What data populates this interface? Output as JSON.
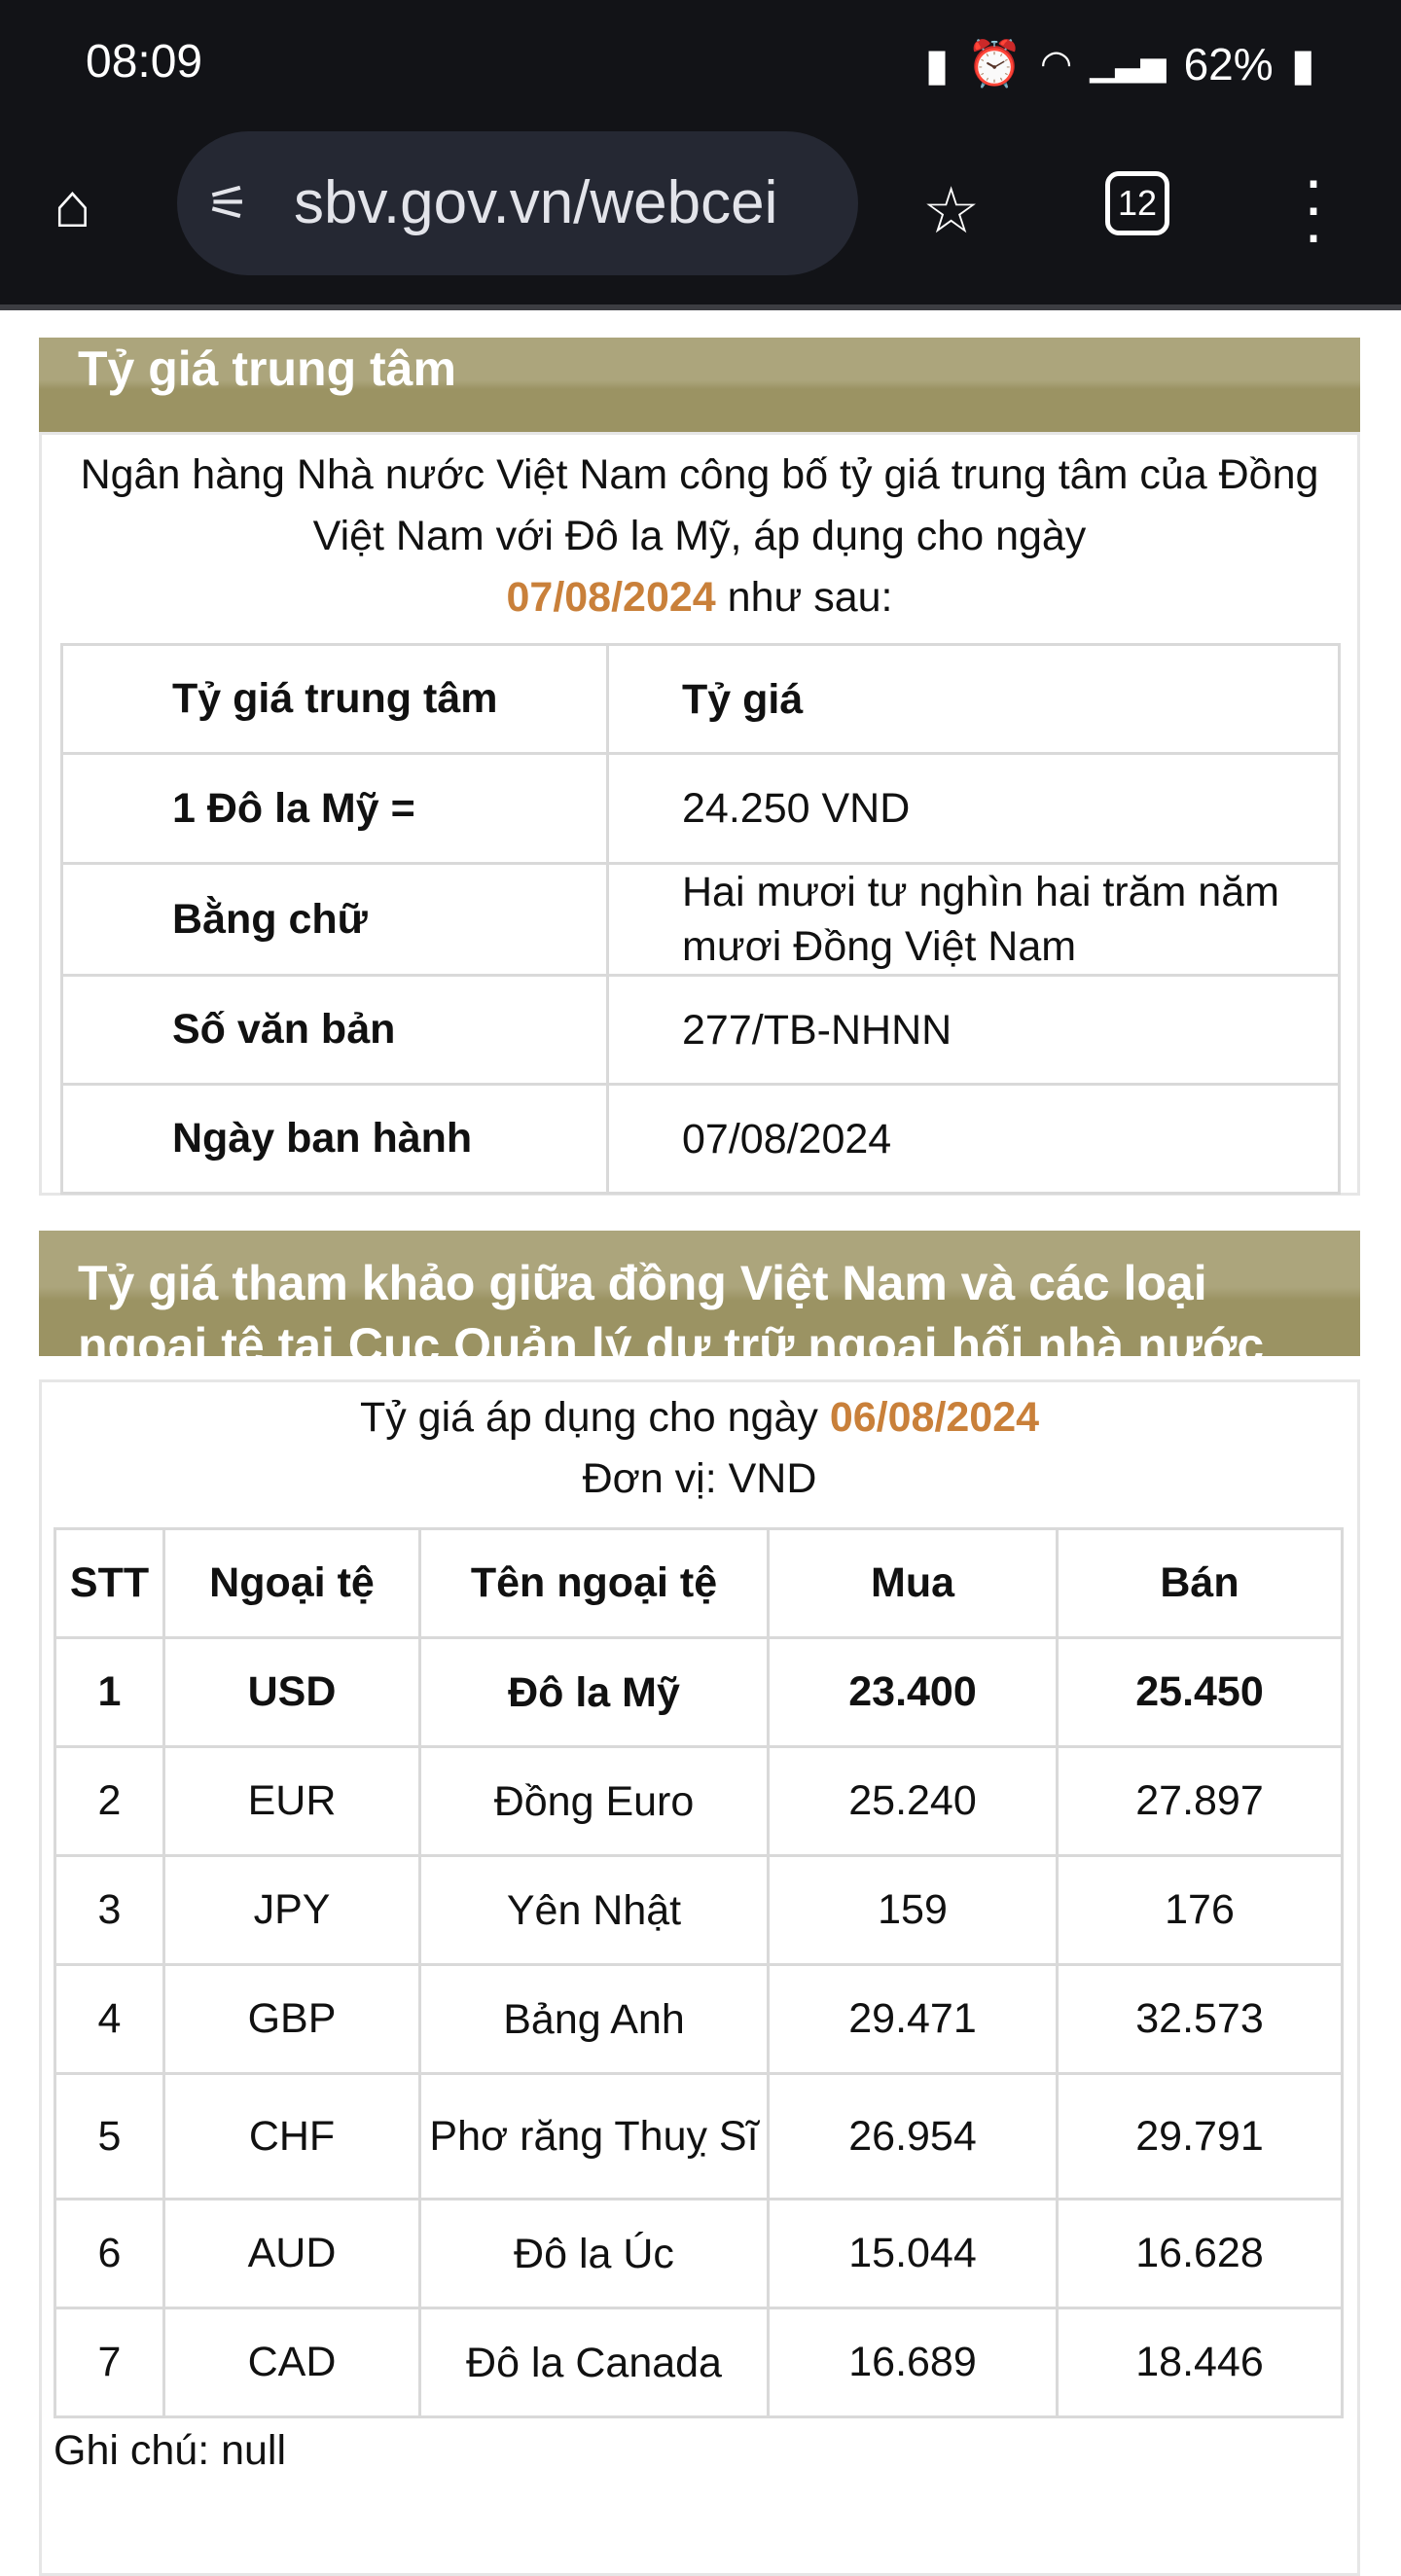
{
  "status_bar": {
    "time": "08:09",
    "battery": "62%",
    "icons": [
      "battery-saver-icon",
      "alarm-icon",
      "wifi-icon",
      "signal-icon",
      "battery-icon"
    ]
  },
  "browser": {
    "url": "sbv.gov.vn/webcei",
    "tab_count": "12",
    "icons": [
      "home-icon",
      "site-settings-icon",
      "star-icon",
      "tabs-icon",
      "more-icon"
    ]
  },
  "central_rate": {
    "title": "Tỷ giá trung tâm",
    "intro": "Ngân hàng Nhà nước Việt Nam công bố tỷ giá trung tâm của Đồng Việt Nam với Đô la Mỹ, áp dụng cho ngày",
    "date": "07/08/2024",
    "intro_suffix": "như sau:",
    "rows": [
      [
        "Tỷ giá trung tâm",
        "Tỷ giá"
      ],
      [
        "1 Đô la Mỹ =",
        "24.250 VND"
      ],
      [
        "Bằng chữ",
        "Hai mươi tư nghìn hai trăm năm mươi  Đồng Việt Nam"
      ],
      [
        "Số văn bản",
        "277/TB-NHNN"
      ],
      [
        "Ngày ban hành",
        "07/08/2024"
      ]
    ]
  },
  "reference_rate": {
    "title": "Tỷ giá tham khảo giữa đồng Việt Nam và các loại ngoại tệ tại Cục Quản lý dự trữ ngoại hối nhà nước",
    "date_label": "Tỷ giá áp dụng cho ngày",
    "date": "06/08/2024",
    "unit": "Đơn vị: VND",
    "headers": [
      "STT",
      "Ngoại tệ",
      "Tên ngoại tệ",
      "Mua",
      "Bán"
    ],
    "rows": [
      [
        "1",
        "USD",
        "Đô la Mỹ",
        "23.400",
        "25.450"
      ],
      [
        "2",
        "EUR",
        "Đồng Euro",
        "25.240",
        "27.897"
      ],
      [
        "3",
        "JPY",
        "Yên Nhật",
        "159",
        "176"
      ],
      [
        "4",
        "GBP",
        "Bảng Anh",
        "29.471",
        "32.573"
      ],
      [
        "5",
        "CHF",
        "Phơ răng Thuỵ Sĩ",
        "26.954",
        "29.791"
      ],
      [
        "6",
        "AUD",
        "Đô la Úc",
        "15.044",
        "16.628"
      ],
      [
        "7",
        "CAD",
        "Đô la Canada",
        "16.689",
        "18.446"
      ]
    ],
    "note": "Ghi chú: null"
  }
}
